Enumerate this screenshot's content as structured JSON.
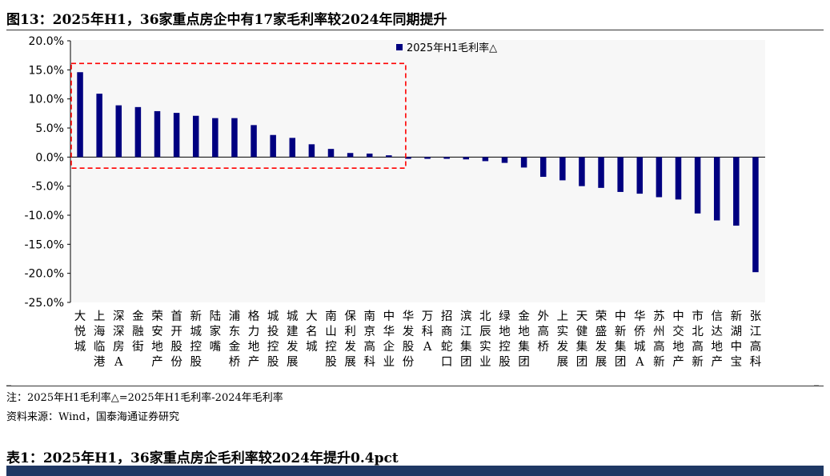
{
  "figure": {
    "title": "图13：2025年H1，36家重点房企中有17家毛利率较2024年同期提升"
  },
  "chart_data": {
    "type": "bar",
    "legend": "2025年H1毛利率△",
    "legend_position": "top-right",
    "ylim": [
      -25,
      20
    ],
    "yticks": [
      "20.0%",
      "15.0%",
      "10.0%",
      "5.0%",
      "0.0%",
      "-5.0%",
      "-10.0%",
      "-15.0%",
      "-20.0%",
      "-25.0%"
    ],
    "grid": false,
    "bar_color": "#000080",
    "highlight_box": {
      "from_index": 0,
      "to_index": 16,
      "color": "#ff0000",
      "style": "dashed"
    },
    "categories": [
      "大悦城",
      "上海临港",
      "深深房A",
      "金融街",
      "荣安地产",
      "首开股份",
      "新城控股",
      "陆家嘴",
      "浦东金桥",
      "格力地产",
      "城投控股",
      "城建发展",
      "大名城",
      "南山控股",
      "保利发展",
      "南京高科",
      "中华企业",
      "华发股份",
      "万科A",
      "招商蛇口",
      "滨江集团",
      "北辰实业",
      "绿地控股",
      "金地集团",
      "外高桥",
      "上实发展",
      "天健集团",
      "荣盛发展",
      "中新集团",
      "华侨城A",
      "苏州高新",
      "中交地产",
      "市北高新",
      "信达地产",
      "新湖中宝",
      "张江高科"
    ],
    "values": [
      14.6,
      10.9,
      8.9,
      8.6,
      7.9,
      7.6,
      7.1,
      6.7,
      6.7,
      5.5,
      3.8,
      3.3,
      2.2,
      1.4,
      0.7,
      0.6,
      0.3,
      -0.3,
      -0.3,
      -0.3,
      -0.4,
      -0.7,
      -1.0,
      -1.8,
      -3.4,
      -4.0,
      -5.0,
      -5.3,
      -6.0,
      -6.3,
      -6.9,
      -7.3,
      -9.7,
      -10.9,
      -11.8,
      -19.8
    ]
  },
  "notes": {
    "note": "注：2025年H1毛利率△=2025年H1毛利率-2024年毛利率",
    "source": "资料来源：Wind，国泰海通证券研究"
  },
  "table": {
    "title": "表1：2025年H1，36家重点房企毛利率较2024年提升0.4pct"
  }
}
